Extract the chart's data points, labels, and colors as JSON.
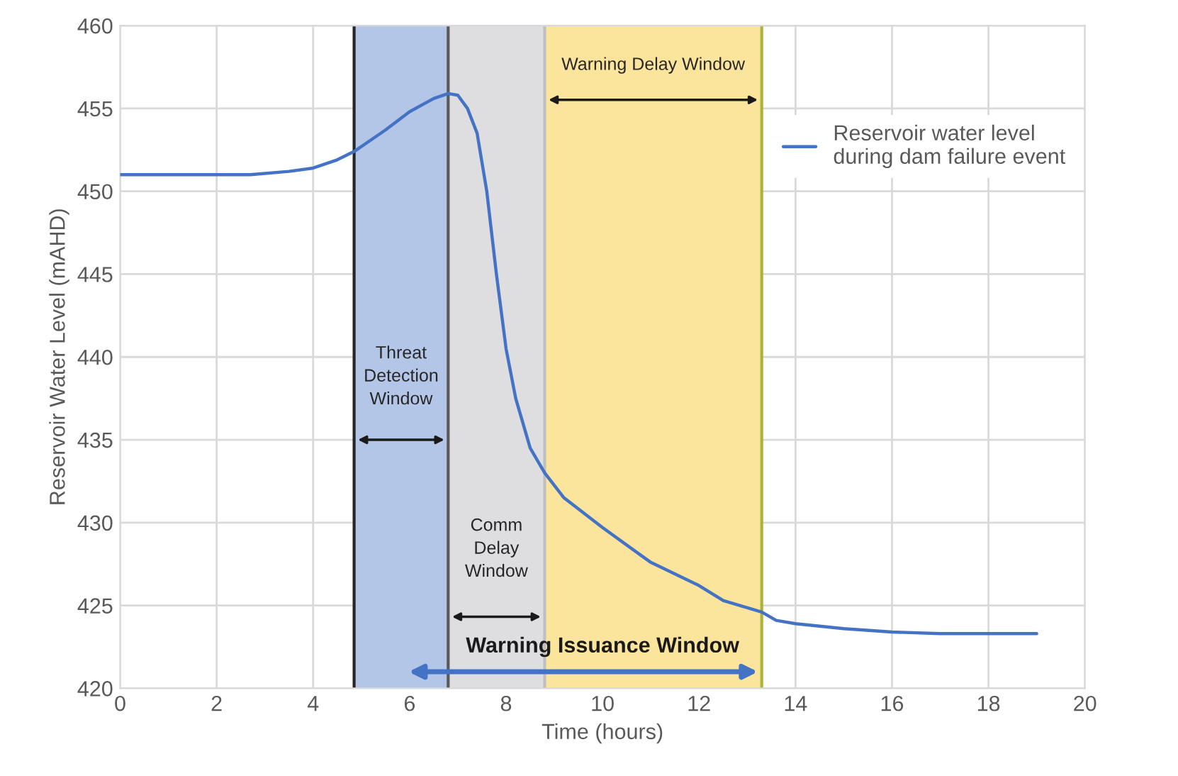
{
  "chart_data": {
    "type": "line",
    "xlabel": "Time (hours)",
    "ylabel": "Reservoir Water Level (mAHD)",
    "xlim": [
      0,
      20
    ],
    "xticks": [
      0,
      2,
      4,
      6,
      8,
      10,
      12,
      14,
      16,
      18,
      20
    ],
    "ylim": [
      420,
      460
    ],
    "yticks": [
      420,
      425,
      430,
      435,
      440,
      445,
      450,
      455,
      460
    ],
    "grid": true,
    "legend": "top right",
    "series": [
      {
        "name": "Reservoir water level during dam failure event",
        "color": "#4472c4",
        "x": [
          0,
          2.7,
          3.5,
          4,
          4.5,
          4.85,
          5.5,
          6,
          6.5,
          6.8,
          7.0,
          7.2,
          7.4,
          7.6,
          7.8,
          8.0,
          8.2,
          8.5,
          8.8,
          9.2,
          10,
          11,
          12,
          12.5,
          13.3,
          13.6,
          14,
          15,
          16,
          17,
          18,
          19
        ],
        "values": [
          451,
          451,
          451.2,
          451.4,
          451.9,
          452.4,
          453.7,
          454.8,
          455.6,
          455.9,
          455.8,
          455,
          453.5,
          450,
          445,
          440.5,
          437.5,
          434.5,
          433,
          431.5,
          429.7,
          427.6,
          426.2,
          425.3,
          424.6,
          424.1,
          423.9,
          423.6,
          423.4,
          423.3,
          423.3,
          423.3
        ]
      }
    ],
    "bands": [
      {
        "axis": "x",
        "from": 4.85,
        "to": 6.8,
        "label": "Threat\nDetection\nWindow",
        "color": "#b4c6e7"
      },
      {
        "axis": "x",
        "from": 6.8,
        "to": 8.8,
        "label": "Comm\nDelay\nWindow",
        "color": "#dedee0"
      },
      {
        "axis": "x",
        "from": 8.8,
        "to": 13.3,
        "label": "Warning Delay Window",
        "color": "#fbe49b"
      }
    ],
    "annotations": [
      {
        "text": "Warning Issuance Window",
        "x": 13.3,
        "y": 421
      }
    ],
    "ref_lines": [
      {
        "axis": "x",
        "value": 4.85,
        "color": "#262626"
      },
      {
        "axis": "x",
        "value": 6.8,
        "color": "#595959"
      },
      {
        "axis": "x",
        "value": 8.8,
        "color": "#bfbfbf"
      },
      {
        "axis": "x",
        "value": 13.3,
        "color": "#a9b53a"
      }
    ]
  }
}
